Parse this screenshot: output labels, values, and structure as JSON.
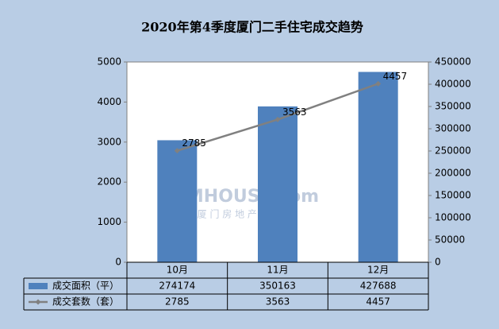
{
  "chart_data": {
    "type": "combo",
    "title": "2020年第4季度厦门二手住宅成交趋势",
    "watermark": [
      "XMHOUSE.com",
      "厦 门 房 地 产 联 合 网"
    ],
    "categories": [
      "10月",
      "11月",
      "12月"
    ],
    "series": [
      {
        "name": "成交面积（平）",
        "type": "bar",
        "axis": "y2",
        "color": "#4f81bd",
        "values": [
          274174,
          350163,
          427688
        ]
      },
      {
        "name": "成交套数（套）",
        "type": "line",
        "axis": "y",
        "color": "#808080",
        "values": [
          2785,
          3563,
          4457
        ]
      }
    ],
    "ylim": [
      0,
      5000
    ],
    "yticks": [
      0,
      1000,
      2000,
      3000,
      4000,
      5000
    ],
    "y2lim": [
      0,
      450000
    ],
    "y2ticks": [
      0,
      50000,
      100000,
      150000,
      200000,
      250000,
      300000,
      350000,
      400000,
      450000
    ],
    "grid": false
  }
}
